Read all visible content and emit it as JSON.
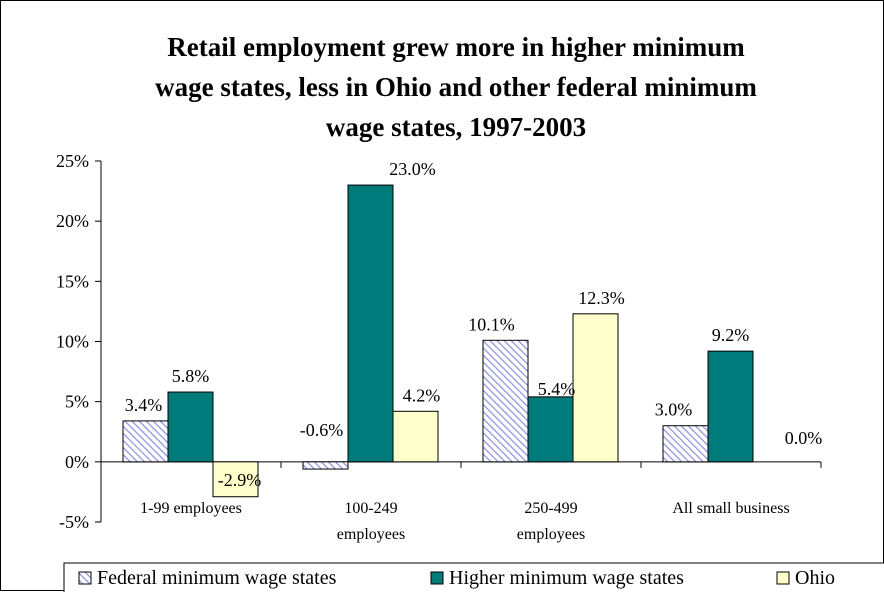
{
  "chart_data": {
    "type": "bar",
    "title_lines": [
      "Retail employment grew more in higher minimum",
      "wage states, less in Ohio and other federal minimum",
      "wage states, 1997-2003"
    ],
    "categories": [
      [
        "1-99 employees"
      ],
      [
        "100-249",
        "employees"
      ],
      [
        "250-499",
        "employees"
      ],
      [
        "All small business"
      ]
    ],
    "series": [
      {
        "name": "Federal minimum wage states",
        "values": [
          3.4,
          -0.6,
          10.1,
          3.0
        ],
        "labels": [
          "3.4%",
          "-0.6%",
          "10.1%",
          "3.0%"
        ],
        "color": "#aab0e8",
        "pattern": "diagonal-hatch"
      },
      {
        "name": "Higher minimum wage states",
        "values": [
          5.8,
          23.0,
          5.4,
          9.2
        ],
        "labels": [
          "5.8%",
          "23.0%",
          "5.4%",
          "9.2%"
        ],
        "color": "#007b7b",
        "pattern": "solid"
      },
      {
        "name": "Ohio",
        "values": [
          -2.9,
          4.2,
          12.3,
          0.0
        ],
        "labels": [
          "-2.9%",
          "4.2%",
          "12.3%",
          "0.0%"
        ],
        "color": "#ffffcc",
        "pattern": "solid"
      }
    ],
    "ylim": [
      -5,
      25
    ],
    "yticks": [
      -5,
      0,
      5,
      10,
      15,
      20,
      25
    ],
    "ytick_labels": [
      "-5%",
      "0%",
      "5%",
      "10%",
      "15%",
      "20%",
      "25%"
    ],
    "xlabel": "",
    "ylabel": "",
    "grid": false,
    "legend_position": "bottom"
  }
}
